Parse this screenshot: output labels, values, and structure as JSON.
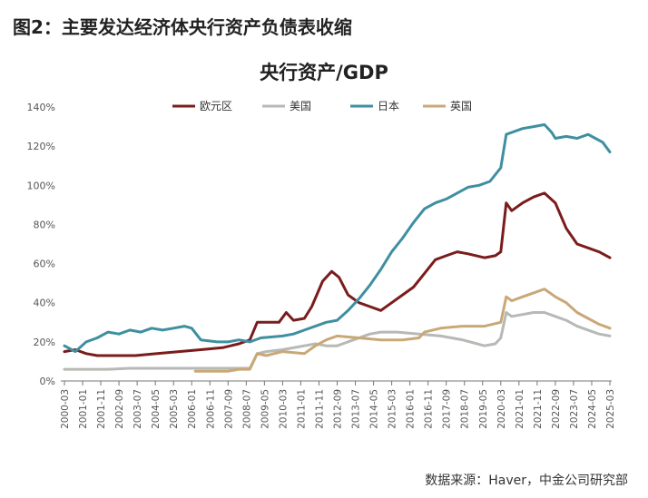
{
  "figure_title": "图2：主要发达经济体央行资产负债表收缩",
  "source": "数据来源：Haver，中金公司研究部",
  "chart_data": {
    "type": "line",
    "title": "央行资产/GDP",
    "xlabel": "",
    "ylabel": "",
    "ylim": [
      0,
      140
    ],
    "yticks": [
      "0%",
      "20%",
      "40%",
      "60%",
      "80%",
      "100%",
      "120%",
      "140%"
    ],
    "xticks": [
      "2000-03",
      "2001-01",
      "2001-11",
      "2002-09",
      "2003-07",
      "2004-05",
      "2005-03",
      "2006-01",
      "2006-11",
      "2007-09",
      "2008-07",
      "2009-05",
      "2010-03",
      "2011-01",
      "2011-11",
      "2012-09",
      "2013-07",
      "2014-05",
      "2015-03",
      "2016-01",
      "2016-11",
      "2017-09",
      "2018-07",
      "2019-05",
      "2020-03",
      "2021-01",
      "2021-11",
      "2022-09",
      "2023-07",
      "2024-05",
      "2025-03"
    ],
    "x_start": "2000-03",
    "x_end": "2025-03",
    "grid": false,
    "legend": "top",
    "series": [
      {
        "name": "欧元区",
        "color": "#7a1c1c",
        "points": [
          [
            "2000-03",
            15
          ],
          [
            "2000-09",
            16
          ],
          [
            "2001-03",
            14
          ],
          [
            "2001-09",
            13
          ],
          [
            "2002-06",
            13
          ],
          [
            "2003-06",
            13
          ],
          [
            "2004-06",
            14
          ],
          [
            "2005-06",
            15
          ],
          [
            "2006-06",
            16
          ],
          [
            "2007-06",
            17
          ],
          [
            "2008-03",
            19
          ],
          [
            "2008-09",
            21
          ],
          [
            "2009-01",
            30
          ],
          [
            "2009-06",
            30
          ],
          [
            "2010-01",
            30
          ],
          [
            "2010-05",
            35
          ],
          [
            "2010-09",
            31
          ],
          [
            "2011-03",
            32
          ],
          [
            "2011-07",
            38
          ],
          [
            "2012-01",
            51
          ],
          [
            "2012-06",
            56
          ],
          [
            "2012-10",
            53
          ],
          [
            "2013-03",
            44
          ],
          [
            "2013-09",
            40
          ],
          [
            "2014-03",
            38
          ],
          [
            "2014-09",
            36
          ],
          [
            "2015-03",
            40
          ],
          [
            "2015-09",
            44
          ],
          [
            "2016-03",
            48
          ],
          [
            "2016-09",
            55
          ],
          [
            "2017-03",
            62
          ],
          [
            "2017-09",
            64
          ],
          [
            "2018-03",
            66
          ],
          [
            "2018-09",
            65
          ],
          [
            "2019-06",
            63
          ],
          [
            "2019-12",
            64
          ],
          [
            "2020-03",
            66
          ],
          [
            "2020-06",
            91
          ],
          [
            "2020-09",
            87
          ],
          [
            "2021-03",
            91
          ],
          [
            "2021-09",
            94
          ],
          [
            "2022-03",
            96
          ],
          [
            "2022-09",
            91
          ],
          [
            "2023-03",
            78
          ],
          [
            "2023-09",
            70
          ],
          [
            "2024-03",
            68
          ],
          [
            "2024-09",
            66
          ],
          [
            "2025-03",
            63
          ]
        ]
      },
      {
        "name": "美国",
        "color": "#b6b9b4",
        "points": [
          [
            "2000-03",
            6
          ],
          [
            "2001-03",
            6
          ],
          [
            "2002-03",
            6
          ],
          [
            "2003-03",
            6.5
          ],
          [
            "2004-03",
            6.5
          ],
          [
            "2005-03",
            6.5
          ],
          [
            "2006-03",
            6.5
          ],
          [
            "2007-03",
            6.5
          ],
          [
            "2008-03",
            6.5
          ],
          [
            "2008-09",
            6.5
          ],
          [
            "2009-01",
            14
          ],
          [
            "2009-06",
            15
          ],
          [
            "2010-03",
            16
          ],
          [
            "2011-03",
            18
          ],
          [
            "2011-09",
            19
          ],
          [
            "2012-03",
            18
          ],
          [
            "2012-09",
            18
          ],
          [
            "2013-06",
            21
          ],
          [
            "2014-03",
            24
          ],
          [
            "2014-09",
            25
          ],
          [
            "2015-06",
            25
          ],
          [
            "2016-06",
            24
          ],
          [
            "2017-06",
            23
          ],
          [
            "2018-06",
            21
          ],
          [
            "2019-06",
            18
          ],
          [
            "2019-12",
            19
          ],
          [
            "2020-03",
            22
          ],
          [
            "2020-06",
            35
          ],
          [
            "2020-09",
            33
          ],
          [
            "2021-03",
            34
          ],
          [
            "2021-09",
            35
          ],
          [
            "2022-03",
            35
          ],
          [
            "2022-09",
            33
          ],
          [
            "2023-03",
            31
          ],
          [
            "2023-09",
            28
          ],
          [
            "2024-03",
            26
          ],
          [
            "2024-09",
            24
          ],
          [
            "2025-03",
            23
          ]
        ]
      },
      {
        "name": "日本",
        "color": "#3e8fa0",
        "points": [
          [
            "2000-03",
            18
          ],
          [
            "2000-09",
            15
          ],
          [
            "2001-03",
            20
          ],
          [
            "2001-09",
            22
          ],
          [
            "2002-03",
            25
          ],
          [
            "2002-09",
            24
          ],
          [
            "2003-03",
            26
          ],
          [
            "2003-09",
            25
          ],
          [
            "2004-03",
            27
          ],
          [
            "2004-09",
            26
          ],
          [
            "2005-03",
            27
          ],
          [
            "2005-09",
            28
          ],
          [
            "2006-01",
            27
          ],
          [
            "2006-06",
            21
          ],
          [
            "2007-03",
            20
          ],
          [
            "2007-09",
            20
          ],
          [
            "2008-03",
            21
          ],
          [
            "2008-09",
            20
          ],
          [
            "2009-03",
            22
          ],
          [
            "2010-03",
            23
          ],
          [
            "2010-09",
            24
          ],
          [
            "2011-03",
            26
          ],
          [
            "2011-09",
            28
          ],
          [
            "2012-03",
            30
          ],
          [
            "2012-09",
            31
          ],
          [
            "2013-03",
            36
          ],
          [
            "2013-09",
            42
          ],
          [
            "2014-03",
            49
          ],
          [
            "2014-09",
            57
          ],
          [
            "2015-03",
            66
          ],
          [
            "2015-09",
            73
          ],
          [
            "2016-03",
            81
          ],
          [
            "2016-09",
            88
          ],
          [
            "2017-03",
            91
          ],
          [
            "2017-09",
            93
          ],
          [
            "2018-03",
            96
          ],
          [
            "2018-09",
            99
          ],
          [
            "2019-03",
            100
          ],
          [
            "2019-09",
            102
          ],
          [
            "2020-03",
            109
          ],
          [
            "2020-06",
            126
          ],
          [
            "2020-09",
            127
          ],
          [
            "2021-03",
            129
          ],
          [
            "2021-09",
            130
          ],
          [
            "2022-03",
            131
          ],
          [
            "2022-07",
            127
          ],
          [
            "2022-09",
            124
          ],
          [
            "2023-03",
            125
          ],
          [
            "2023-09",
            124
          ],
          [
            "2024-03",
            126
          ],
          [
            "2024-07",
            124
          ],
          [
            "2024-11",
            122
          ],
          [
            "2025-03",
            117
          ]
        ]
      },
      {
        "name": "英国",
        "color": "#c9a877",
        "points": [
          [
            "2006-03",
            5
          ],
          [
            "2006-09",
            5
          ],
          [
            "2007-03",
            5
          ],
          [
            "2007-09",
            5
          ],
          [
            "2008-03",
            6
          ],
          [
            "2008-09",
            6
          ],
          [
            "2009-01",
            14
          ],
          [
            "2009-06",
            13
          ],
          [
            "2010-03",
            15
          ],
          [
            "2011-03",
            14
          ],
          [
            "2011-09",
            18
          ],
          [
            "2012-03",
            21
          ],
          [
            "2012-09",
            23
          ],
          [
            "2013-09",
            22
          ],
          [
            "2014-09",
            21
          ],
          [
            "2015-09",
            21
          ],
          [
            "2016-06",
            22
          ],
          [
            "2016-09",
            25
          ],
          [
            "2017-06",
            27
          ],
          [
            "2018-06",
            28
          ],
          [
            "2019-06",
            28
          ],
          [
            "2020-03",
            30
          ],
          [
            "2020-06",
            43
          ],
          [
            "2020-09",
            41
          ],
          [
            "2021-03",
            43
          ],
          [
            "2021-09",
            45
          ],
          [
            "2022-03",
            47
          ],
          [
            "2022-09",
            43
          ],
          [
            "2023-03",
            40
          ],
          [
            "2023-09",
            35
          ],
          [
            "2024-03",
            32
          ],
          [
            "2024-09",
            29
          ],
          [
            "2025-03",
            27
          ]
        ]
      }
    ]
  }
}
